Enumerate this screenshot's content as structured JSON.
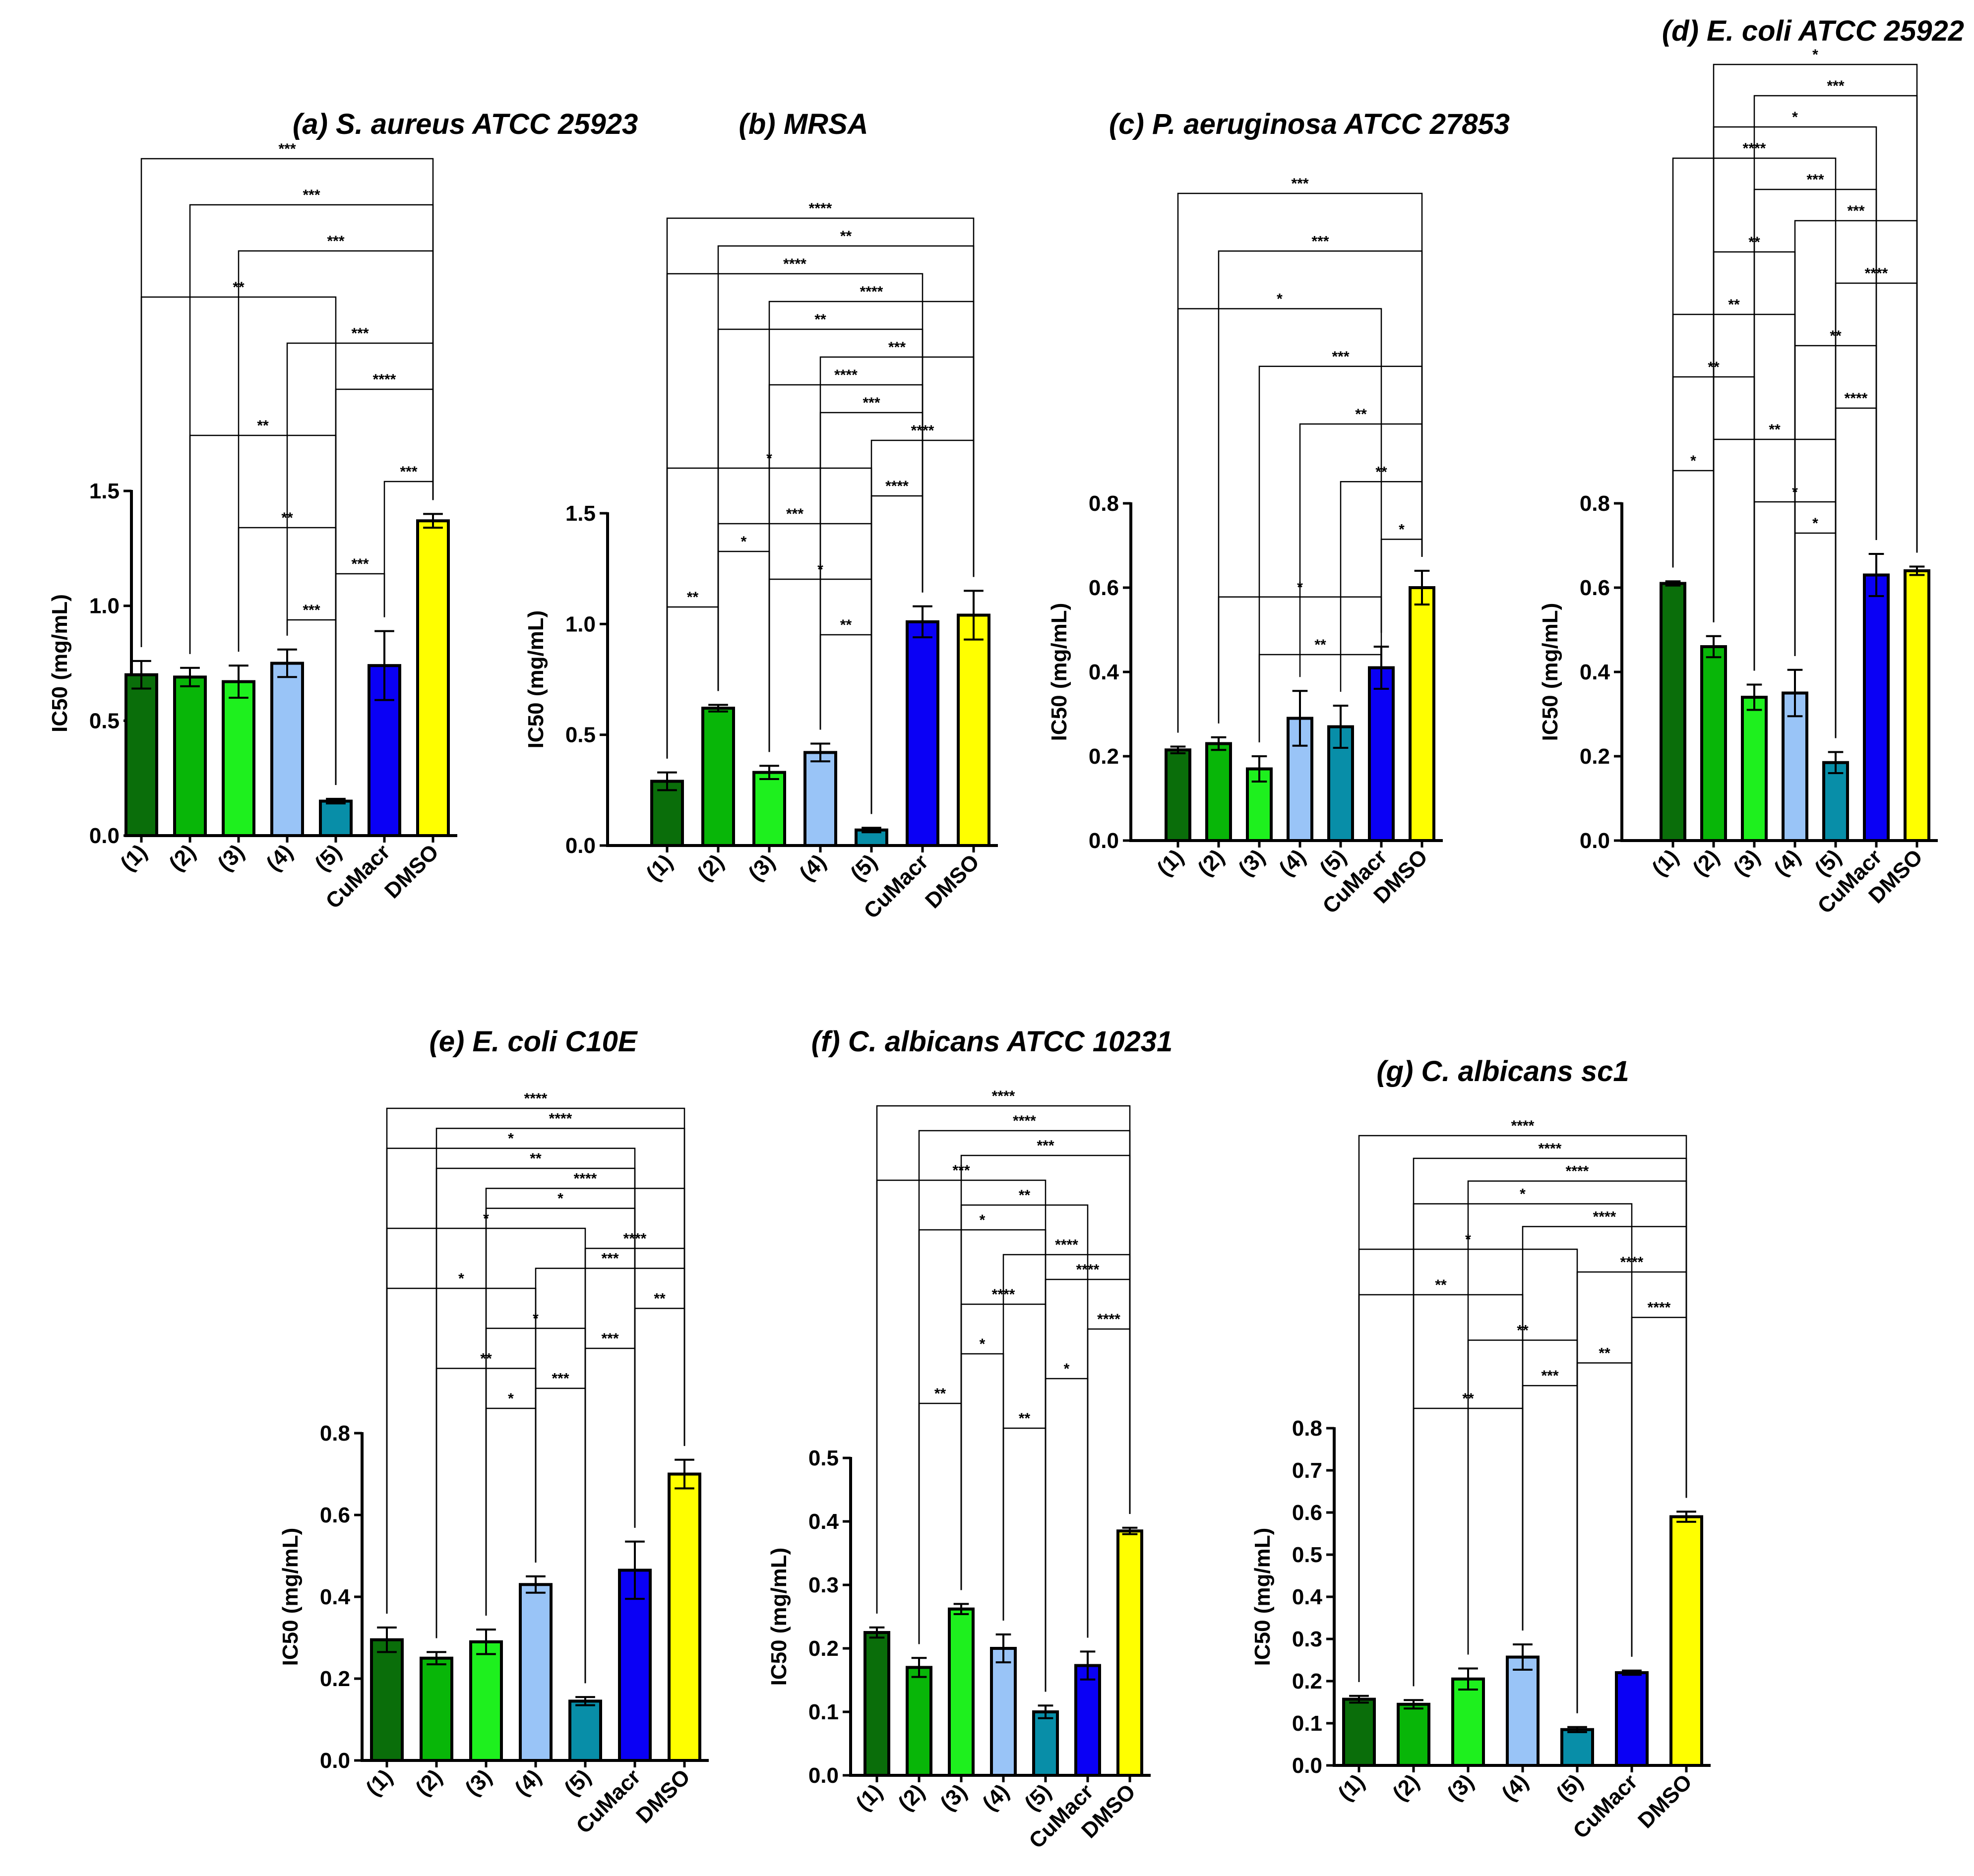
{
  "figure": {
    "colors": [
      "#0a6e0a",
      "#08b608",
      "#1ef01e",
      "#99c4f7",
      "#088ea8",
      "#0a00f5",
      "#ffff00"
    ],
    "outline_color": "#000000"
  },
  "chart_data": [
    {
      "id": "a",
      "type": "bar",
      "title": "(a) S. aureus ATCC 25923",
      "ylabel": "IC50 (mg/mL)",
      "categories": [
        "(1)",
        "(2)",
        "(3)",
        "(4)",
        "(5)",
        "CuMacr",
        "DMSO"
      ],
      "values": [
        0.7,
        0.69,
        0.67,
        0.75,
        0.15,
        0.74,
        1.37
      ],
      "errors": [
        0.06,
        0.04,
        0.07,
        0.06,
        0.01,
        0.15,
        0.03
      ],
      "ylim": [
        0,
        1.5
      ],
      "yticks": [
        "0.0",
        "0.5",
        "1.0",
        "1.5"
      ],
      "comparisons": [
        {
          "a": 0,
          "b": 6,
          "label": "***"
        },
        {
          "a": 1,
          "b": 6,
          "label": "***"
        },
        {
          "a": 2,
          "b": 6,
          "label": "***"
        },
        {
          "a": 0,
          "b": 4,
          "label": "**"
        },
        {
          "a": 3,
          "b": 6,
          "label": "***"
        },
        {
          "a": 4,
          "b": 6,
          "label": "****"
        },
        {
          "a": 1,
          "b": 4,
          "label": "**"
        },
        {
          "a": 5,
          "b": 6,
          "label": "***"
        },
        {
          "a": 2,
          "b": 4,
          "label": "**"
        },
        {
          "a": 4,
          "b": 5,
          "label": "***"
        },
        {
          "a": 3,
          "b": 4,
          "label": "***"
        }
      ]
    },
    {
      "id": "b",
      "type": "bar",
      "title": "(b) MRSA",
      "ylabel": "IC50 (mg/mL)",
      "categories": [
        "(1)",
        "(2)",
        "(3)",
        "(4)",
        "(5)",
        "CuMacr",
        "DMSO"
      ],
      "values": [
        0.29,
        0.62,
        0.33,
        0.42,
        0.07,
        1.01,
        1.04
      ],
      "errors": [
        0.04,
        0.015,
        0.03,
        0.04,
        0.01,
        0.07,
        0.11
      ],
      "ylim": [
        0,
        1.5
      ],
      "yticks": [
        "0.0",
        "0.5",
        "1.0",
        "1.5"
      ],
      "comparisons": [
        {
          "a": 0,
          "b": 6,
          "label": "****"
        },
        {
          "a": 1,
          "b": 6,
          "label": "**"
        },
        {
          "a": 0,
          "b": 5,
          "label": "****"
        },
        {
          "a": 2,
          "b": 6,
          "label": "****"
        },
        {
          "a": 1,
          "b": 5,
          "label": "**"
        },
        {
          "a": 3,
          "b": 6,
          "label": "***"
        },
        {
          "a": 2,
          "b": 5,
          "label": "****"
        },
        {
          "a": 3,
          "b": 5,
          "label": "***"
        },
        {
          "a": 4,
          "b": 6,
          "label": "****"
        },
        {
          "a": 0,
          "b": 4,
          "label": "*"
        },
        {
          "a": 4,
          "b": 5,
          "label": "****"
        },
        {
          "a": 1,
          "b": 4,
          "label": "***"
        },
        {
          "a": 1,
          "b": 2,
          "label": "*"
        },
        {
          "a": 2,
          "b": 4,
          "label": "*"
        },
        {
          "a": 0,
          "b": 1,
          "label": "**"
        },
        {
          "a": 3,
          "b": 4,
          "label": "**"
        }
      ]
    },
    {
      "id": "c",
      "type": "bar",
      "title": "(c) P. aeruginosa ATCC 27853",
      "ylabel": "IC50 (mg/mL)",
      "categories": [
        "(1)",
        "(2)",
        "(3)",
        "(4)",
        "(5)",
        "CuMacr",
        "DMSO"
      ],
      "values": [
        0.215,
        0.23,
        0.17,
        0.29,
        0.27,
        0.41,
        0.6
      ],
      "errors": [
        0.008,
        0.015,
        0.03,
        0.065,
        0.05,
        0.05,
        0.04
      ],
      "ylim": [
        0,
        0.8
      ],
      "yticks": [
        "0.0",
        "0.2",
        "0.4",
        "0.6",
        "0.8"
      ],
      "comparisons": [
        {
          "a": 0,
          "b": 6,
          "label": "***"
        },
        {
          "a": 1,
          "b": 6,
          "label": "***"
        },
        {
          "a": 0,
          "b": 5,
          "label": "*"
        },
        {
          "a": 2,
          "b": 6,
          "label": "***"
        },
        {
          "a": 3,
          "b": 6,
          "label": "**"
        },
        {
          "a": 4,
          "b": 6,
          "label": "**"
        },
        {
          "a": 5,
          "b": 6,
          "label": "*"
        },
        {
          "a": 1,
          "b": 5,
          "label": "*"
        },
        {
          "a": 2,
          "b": 5,
          "label": "**"
        }
      ]
    },
    {
      "id": "d",
      "type": "bar",
      "title": "(d) E. coli ATCC  25922",
      "ylabel": "IC50 (mg/mL)",
      "categories": [
        "(1)",
        "(2)",
        "(3)",
        "(4)",
        "(5)",
        "CuMacr",
        "DMSO"
      ],
      "values": [
        0.61,
        0.46,
        0.34,
        0.35,
        0.185,
        0.63,
        0.64
      ],
      "errors": [
        0.005,
        0.025,
        0.03,
        0.055,
        0.025,
        0.05,
        0.01
      ],
      "ylim": [
        0,
        0.8
      ],
      "yticks": [
        "0.0",
        "0.2",
        "0.4",
        "0.6",
        "0.8"
      ],
      "comparisons": [
        {
          "a": 1,
          "b": 6,
          "label": "*"
        },
        {
          "a": 2,
          "b": 6,
          "label": "***"
        },
        {
          "a": 1,
          "b": 5,
          "label": "*"
        },
        {
          "a": 0,
          "b": 4,
          "label": "****"
        },
        {
          "a": 2,
          "b": 5,
          "label": "***"
        },
        {
          "a": 3,
          "b": 6,
          "label": "***"
        },
        {
          "a": 1,
          "b": 3,
          "label": "**"
        },
        {
          "a": 4,
          "b": 6,
          "label": "****"
        },
        {
          "a": 0,
          "b": 3,
          "label": "**"
        },
        {
          "a": 3,
          "b": 5,
          "label": "**"
        },
        {
          "a": 0,
          "b": 2,
          "label": "**"
        },
        {
          "a": 4,
          "b": 5,
          "label": "****"
        },
        {
          "a": 1,
          "b": 4,
          "label": "**"
        },
        {
          "a": 0,
          "b": 1,
          "label": "*"
        },
        {
          "a": 2,
          "b": 4,
          "label": "*"
        },
        {
          "a": 3,
          "b": 4,
          "label": "*"
        }
      ]
    },
    {
      "id": "e",
      "type": "bar",
      "title": "(e) E. coli C10E",
      "ylabel": "IC50 (mg/mL)",
      "categories": [
        "(1)",
        "(2)",
        "(3)",
        "(4)",
        "(5)",
        "CuMacr",
        "DMSO"
      ],
      "values": [
        0.295,
        0.25,
        0.29,
        0.43,
        0.145,
        0.465,
        0.7
      ],
      "errors": [
        0.03,
        0.015,
        0.03,
        0.02,
        0.01,
        0.07,
        0.035
      ],
      "ylim": [
        0,
        0.8
      ],
      "yticks": [
        "0.0",
        "0.2",
        "0.4",
        "0.6",
        "0.8"
      ],
      "comparisons": [
        {
          "a": 0,
          "b": 6,
          "label": "****"
        },
        {
          "a": 1,
          "b": 6,
          "label": "****"
        },
        {
          "a": 0,
          "b": 5,
          "label": "*"
        },
        {
          "a": 1,
          "b": 5,
          "label": "**"
        },
        {
          "a": 2,
          "b": 6,
          "label": "****"
        },
        {
          "a": 2,
          "b": 5,
          "label": "*"
        },
        {
          "a": 0,
          "b": 4,
          "label": "*"
        },
        {
          "a": 4,
          "b": 6,
          "label": "****"
        },
        {
          "a": 3,
          "b": 6,
          "label": "***"
        },
        {
          "a": 0,
          "b": 3,
          "label": "*"
        },
        {
          "a": 5,
          "b": 6,
          "label": "**"
        },
        {
          "a": 2,
          "b": 4,
          "label": "*"
        },
        {
          "a": 4,
          "b": 5,
          "label": "***"
        },
        {
          "a": 1,
          "b": 3,
          "label": "**"
        },
        {
          "a": 3,
          "b": 4,
          "label": "***"
        },
        {
          "a": 2,
          "b": 3,
          "label": "*"
        }
      ]
    },
    {
      "id": "f",
      "type": "bar",
      "title": "(f) C. albicans ATCC 10231",
      "ylabel": "IC50 (mg/mL)",
      "categories": [
        "(1)",
        "(2)",
        "(3)",
        "(4)",
        "(5)",
        "CuMacr",
        "DMSO"
      ],
      "values": [
        0.225,
        0.17,
        0.262,
        0.2,
        0.1,
        0.173,
        0.385
      ],
      "errors": [
        0.008,
        0.015,
        0.008,
        0.022,
        0.01,
        0.022,
        0.005
      ],
      "ylim": [
        0,
        0.5
      ],
      "yticks": [
        "0.0",
        "0.1",
        "0.2",
        "0.3",
        "0.4",
        "0.5"
      ],
      "comparisons": [
        {
          "a": 0,
          "b": 6,
          "label": "****"
        },
        {
          "a": 1,
          "b": 6,
          "label": "****"
        },
        {
          "a": 2,
          "b": 6,
          "label": "***"
        },
        {
          "a": 0,
          "b": 4,
          "label": "***"
        },
        {
          "a": 2,
          "b": 5,
          "label": "**"
        },
        {
          "a": 1,
          "b": 4,
          "label": "*"
        },
        {
          "a": 3,
          "b": 6,
          "label": "****"
        },
        {
          "a": 4,
          "b": 6,
          "label": "****"
        },
        {
          "a": 2,
          "b": 4,
          "label": "****"
        },
        {
          "a": 5,
          "b": 6,
          "label": "****"
        },
        {
          "a": 2,
          "b": 3,
          "label": "*"
        },
        {
          "a": 4,
          "b": 5,
          "label": "*"
        },
        {
          "a": 1,
          "b": 2,
          "label": "**"
        },
        {
          "a": 3,
          "b": 4,
          "label": "**"
        }
      ]
    },
    {
      "id": "g",
      "type": "bar",
      "title": "(g) C. albicans sc1",
      "ylabel": "IC50 (mg/mL)",
      "categories": [
        "(1)",
        "(2)",
        "(3)",
        "(4)",
        "(5)",
        "CuMacr",
        "DMSO"
      ],
      "values": [
        0.157,
        0.145,
        0.205,
        0.257,
        0.085,
        0.22,
        0.59
      ],
      "errors": [
        0.008,
        0.01,
        0.025,
        0.03,
        0.006,
        0.005,
        0.012
      ],
      "ylim": [
        0,
        0.8
      ],
      "yticks": [
        "0.0",
        "0.1",
        "0.2",
        "0.3",
        "0.4",
        "0.5",
        "0.6",
        "0.7",
        "0.8"
      ],
      "comparisons": [
        {
          "a": 0,
          "b": 6,
          "label": "****"
        },
        {
          "a": 1,
          "b": 6,
          "label": "****"
        },
        {
          "a": 2,
          "b": 6,
          "label": "****"
        },
        {
          "a": 1,
          "b": 5,
          "label": "*"
        },
        {
          "a": 3,
          "b": 6,
          "label": "****"
        },
        {
          "a": 0,
          "b": 4,
          "label": "*"
        },
        {
          "a": 4,
          "b": 6,
          "label": "****"
        },
        {
          "a": 0,
          "b": 3,
          "label": "**"
        },
        {
          "a": 5,
          "b": 6,
          "label": "****"
        },
        {
          "a": 2,
          "b": 4,
          "label": "**"
        },
        {
          "a": 4,
          "b": 5,
          "label": "**"
        },
        {
          "a": 3,
          "b": 4,
          "label": "***"
        },
        {
          "a": 1,
          "b": 3,
          "label": "**"
        }
      ]
    }
  ]
}
